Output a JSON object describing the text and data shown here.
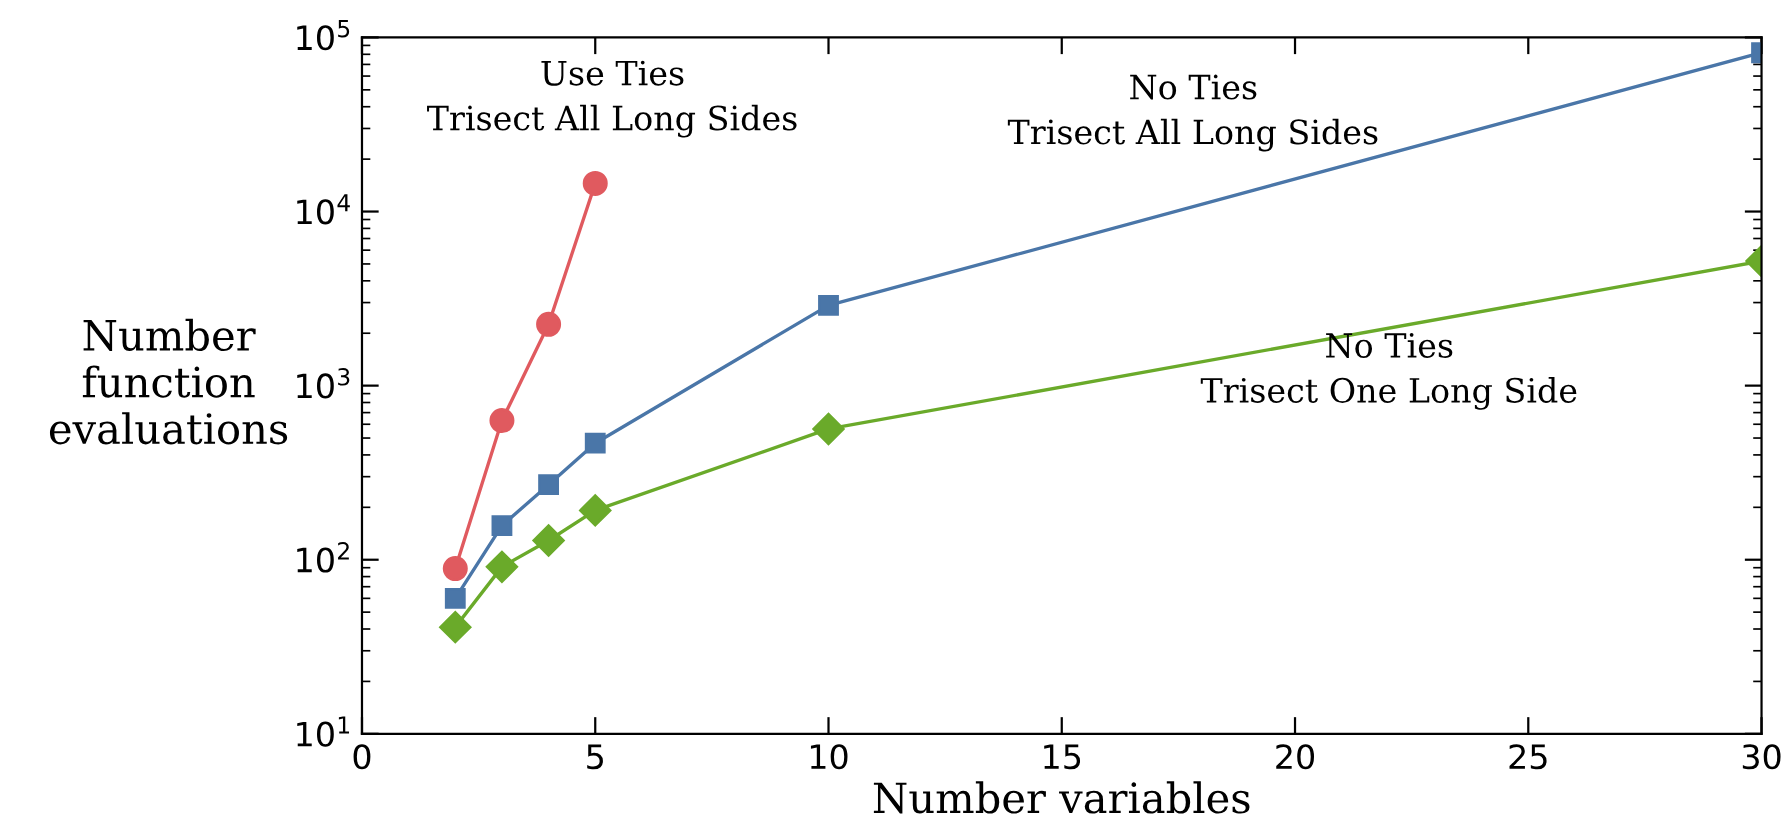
{
  "chart_data": {
    "type": "line",
    "xlabel": "Number variables",
    "ylabel": "Number\nfunction\nevaluations",
    "log": "y",
    "grid": false,
    "legend": false,
    "line_style": "solid",
    "xlim": [
      0,
      30
    ],
    "xticks": [
      0,
      5,
      10,
      15,
      20,
      25,
      30
    ],
    "ylim": [
      10,
      100000
    ],
    "yticks": [
      {
        "value": 10,
        "label": "10$^{1}$"
      },
      {
        "value": 100,
        "label": "10$^{2}$"
      },
      {
        "value": 1000,
        "label": "10$^{3}$"
      },
      {
        "value": 10000,
        "label": "10$^{4}$"
      },
      {
        "value": 100000,
        "label": "10$^{5}$"
      }
    ],
    "series": [
      {
        "color": "#e05a5f",
        "marker": "circle",
        "x": [
          2,
          3,
          4,
          5
        ],
        "values": [
          89,
          630,
          2250,
          14500
        ]
      },
      {
        "color": "#4a76a8",
        "marker": "square",
        "x": [
          2,
          3,
          4,
          5,
          10,
          30
        ],
        "values": [
          60,
          157,
          270,
          467,
          2890,
          81700
        ]
      },
      {
        "color": "#6aaa2a",
        "marker": "diamond",
        "x": [
          2,
          3,
          4,
          5,
          10,
          30
        ],
        "values": [
          41,
          91,
          129,
          192,
          564,
          5190
        ]
      }
    ],
    "annotations": [
      "Use Ties\nTrisect All Long Sides",
      "No Ties\nTrisect All Long Sides",
      "No Ties\nTrisect One Long Side"
    ]
  }
}
